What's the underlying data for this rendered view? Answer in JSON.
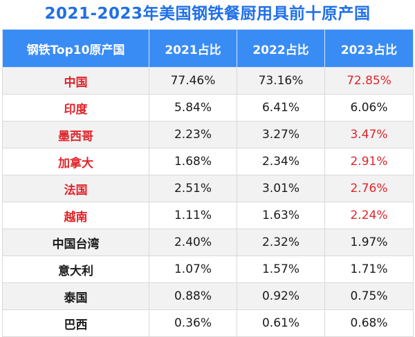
{
  "title": "2021-2023年美国钢铁餐厨用具前十原产国",
  "headers": [
    "钢铁Top10原产国",
    "2021占比",
    "2022占比",
    "2023占比"
  ],
  "colors": {
    "title": "#1f6fe8",
    "header_bg": "#3a8cf5",
    "highlight": "#e0242a"
  },
  "rows": [
    {
      "country": "中国",
      "y2021": "77.46%",
      "y2022": "73.16%",
      "y2023": "72.85%",
      "highlight_name": true,
      "highlight_2023": true
    },
    {
      "country": "印度",
      "y2021": "5.84%",
      "y2022": "6.41%",
      "y2023": "6.06%",
      "highlight_name": true,
      "highlight_2023": false
    },
    {
      "country": "墨西哥",
      "y2021": "2.23%",
      "y2022": "3.27%",
      "y2023": "3.47%",
      "highlight_name": true,
      "highlight_2023": true
    },
    {
      "country": "加拿大",
      "y2021": "1.68%",
      "y2022": "2.34%",
      "y2023": "2.91%",
      "highlight_name": true,
      "highlight_2023": true
    },
    {
      "country": "法国",
      "y2021": "2.51%",
      "y2022": "3.01%",
      "y2023": "2.76%",
      "highlight_name": true,
      "highlight_2023": true
    },
    {
      "country": "越南",
      "y2021": "1.11%",
      "y2022": "1.63%",
      "y2023": "2.24%",
      "highlight_name": true,
      "highlight_2023": true
    },
    {
      "country": "中国台湾",
      "y2021": "2.40%",
      "y2022": "2.32%",
      "y2023": "1.97%",
      "highlight_name": false,
      "highlight_2023": false
    },
    {
      "country": "意大利",
      "y2021": "1.07%",
      "y2022": "1.57%",
      "y2023": "1.71%",
      "highlight_name": false,
      "highlight_2023": false
    },
    {
      "country": "泰国",
      "y2021": "0.88%",
      "y2022": "0.92%",
      "y2023": "0.75%",
      "highlight_name": false,
      "highlight_2023": false
    },
    {
      "country": "巴西",
      "y2021": "0.36%",
      "y2022": "0.61%",
      "y2023": "0.68%",
      "highlight_name": false,
      "highlight_2023": false
    }
  ]
}
